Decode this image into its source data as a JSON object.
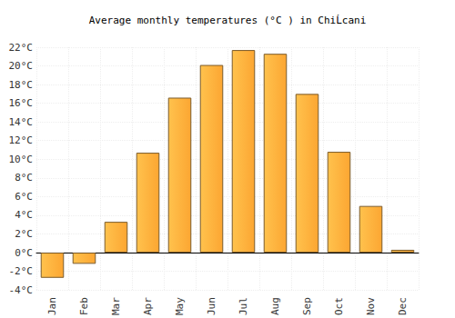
{
  "chart_data": {
    "type": "bar",
    "title": "Average monthly temperatures (°C ) in ChiĹcani",
    "categories": [
      "Jan",
      "Feb",
      "Mar",
      "Apr",
      "May",
      "Jun",
      "Jul",
      "Aug",
      "Sep",
      "Oct",
      "Nov",
      "Dec"
    ],
    "values": [
      -2.7,
      -1.2,
      3.3,
      10.7,
      16.6,
      20.1,
      21.7,
      21.3,
      17.0,
      10.8,
      5.0,
      0.3
    ],
    "color": "#fca632",
    "ylim": [
      -4,
      22
    ],
    "yticks": [
      {
        "value": -4,
        "label": "-4°C"
      },
      {
        "value": -2,
        "label": "-2°C"
      },
      {
        "value": 0,
        "label": "0°C"
      },
      {
        "value": 2,
        "label": "2°C"
      },
      {
        "value": 4,
        "label": "4°C"
      },
      {
        "value": 6,
        "label": "6°C"
      },
      {
        "value": 8,
        "label": "8°C"
      },
      {
        "value": 10,
        "label": "10°C"
      },
      {
        "value": 12,
        "label": "12°C"
      },
      {
        "value": 14,
        "label": "14°C"
      },
      {
        "value": 16,
        "label": "16°C"
      },
      {
        "value": 18,
        "label": "18°C"
      },
      {
        "value": 20,
        "label": "20°C"
      },
      {
        "value": 22,
        "label": "22°C"
      }
    ],
    "grid": true
  }
}
